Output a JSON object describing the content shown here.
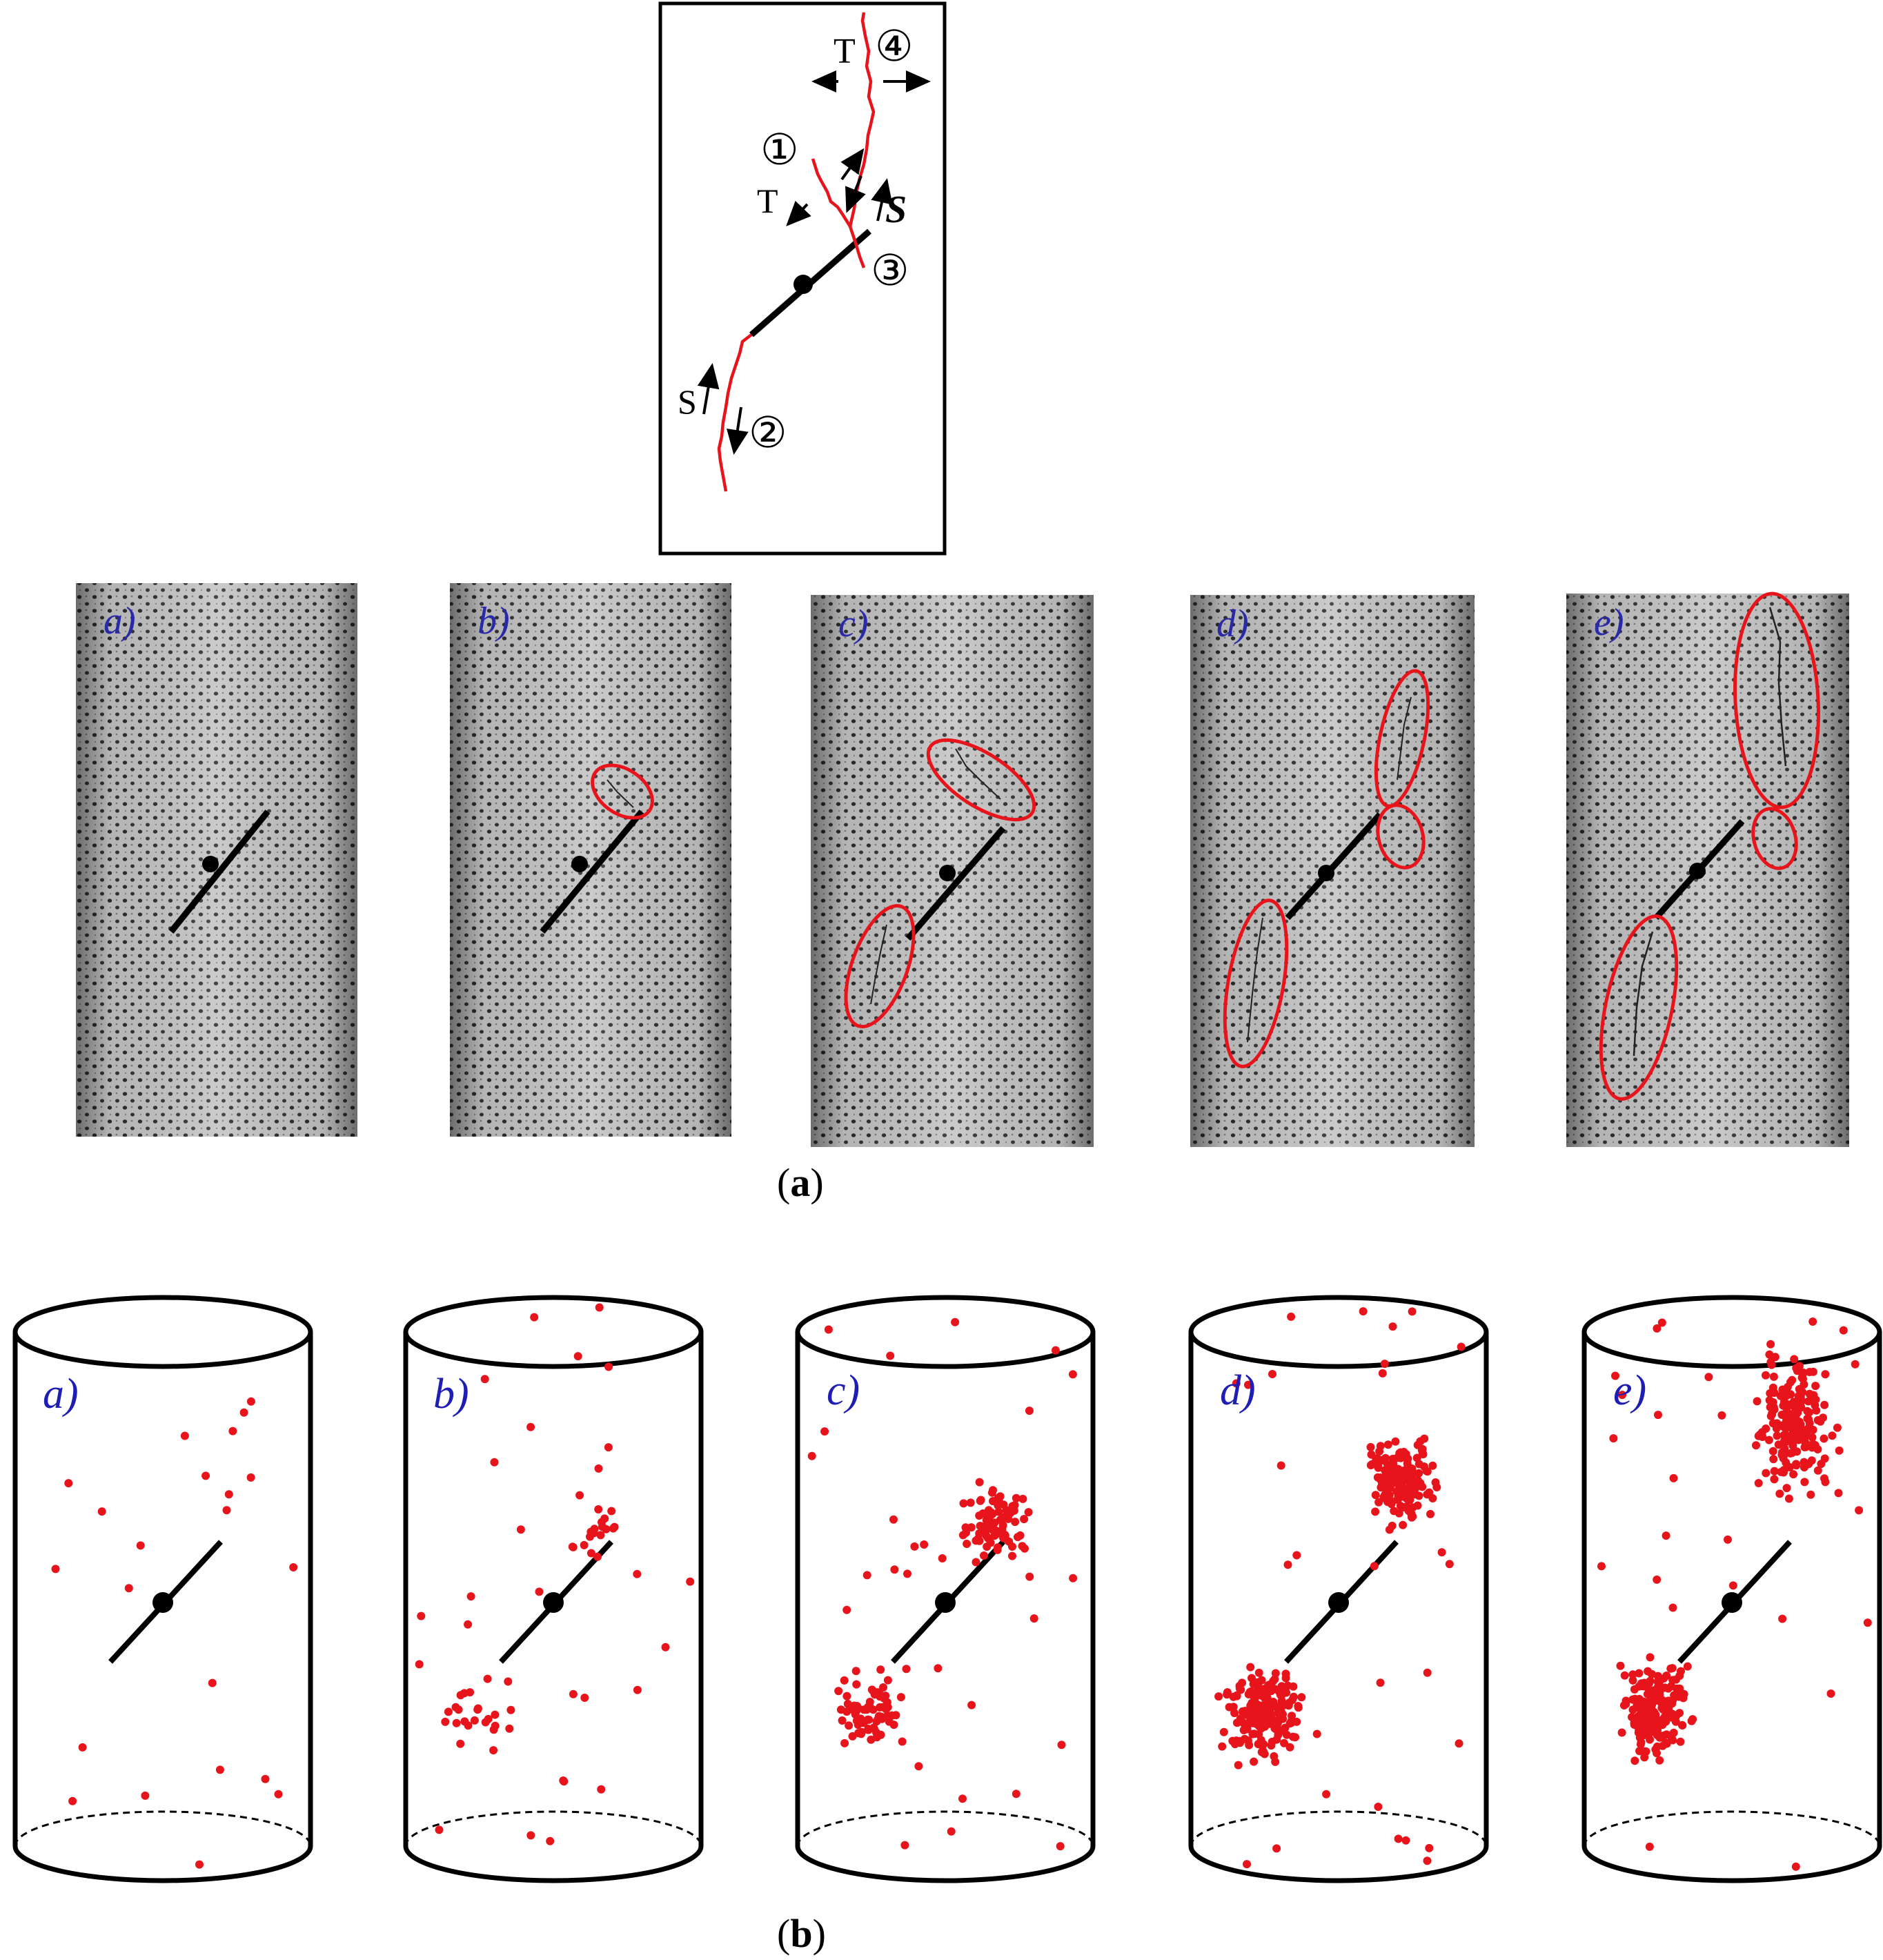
{
  "schematic": {
    "circled_labels": [
      "①",
      "②",
      "③",
      "④"
    ],
    "tension_label": "T",
    "shear_label": "S",
    "shear_label_italic": "S"
  },
  "photo_row": {
    "letters": [
      "a)",
      "b)",
      "c)",
      "d)",
      "e)"
    ],
    "caption_open": "(",
    "caption_letter": "a",
    "caption_close": ")"
  },
  "ae_row": {
    "letters": [
      "a)",
      "b)",
      "c)",
      "d)",
      "e)"
    ],
    "caption_open": "(",
    "caption_letter": "b",
    "caption_close": ")",
    "event_counts_visual": [
      22,
      70,
      190,
      380,
      400
    ]
  },
  "colors": {
    "crack": "#e8141c",
    "ae_event": "#e8141c",
    "flaw": "#000000",
    "letter": "#2a2aa8",
    "photo_bg": "#b9b9b9"
  }
}
